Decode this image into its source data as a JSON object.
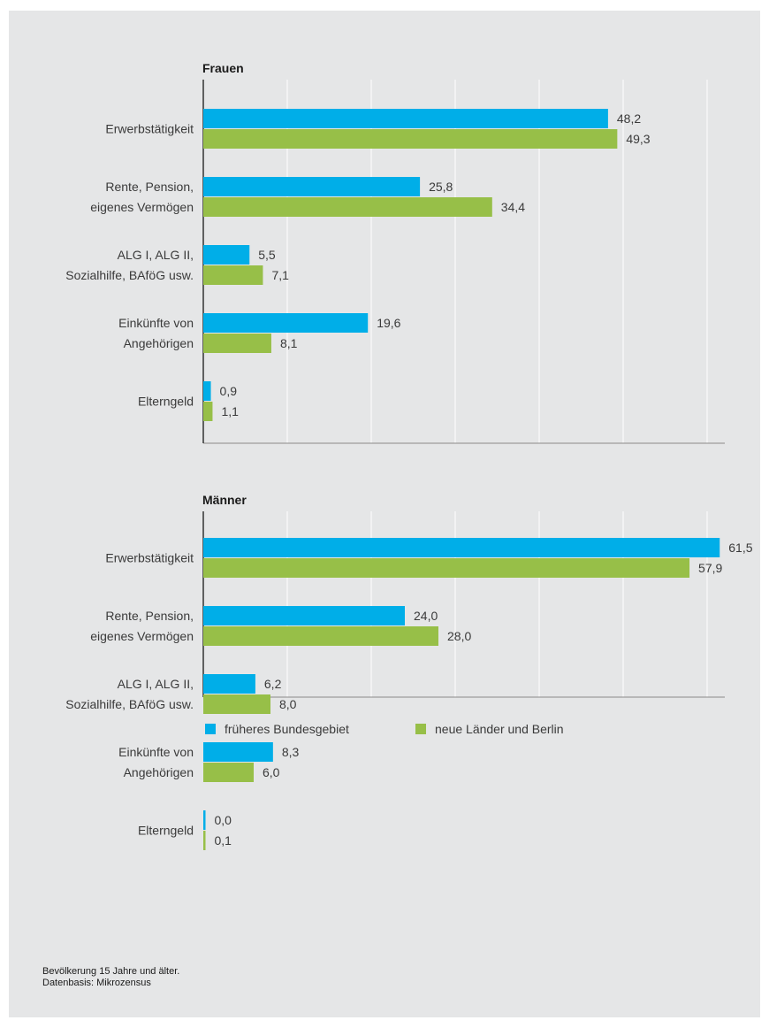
{
  "chart_data": {
    "type": "bar",
    "orientation": "horizontal",
    "xlim": [
      0,
      62
    ],
    "grid": true,
    "legend_placement": "bottom",
    "series_colors": [
      "#00aee8",
      "#97bf48"
    ],
    "legend": [
      "früheres Bundesgebiet",
      "neue Länder und Berlin"
    ],
    "panels": [
      {
        "title": "Frauen",
        "categories": [
          [
            "Erwerbstätigkeit"
          ],
          [
            "Rente, Pension,",
            "eigenes Vermögen"
          ],
          [
            "ALG I, ALG II,",
            "Sozialhilfe, BAföG usw."
          ],
          [
            "Einkünfte von",
            "Angehörigen"
          ],
          [
            "Elterngeld"
          ]
        ],
        "series": [
          {
            "values": [
              48.2,
              25.8,
              5.5,
              19.6,
              0.9
            ],
            "labels": [
              "48,2",
              "25,8",
              "5,5",
              "19,6",
              "0,9"
            ]
          },
          {
            "values": [
              49.3,
              34.4,
              7.1,
              8.1,
              1.1
            ],
            "labels": [
              "49,3",
              "34,4",
              "7,1",
              "8,1",
              "1,1"
            ]
          }
        ]
      },
      {
        "title": "Männer",
        "categories": [
          [
            "Erwerbstätigkeit"
          ],
          [
            "Rente, Pension,",
            "eigenes Vermögen"
          ],
          [
            "ALG I, ALG II,",
            "Sozialhilfe, BAföG usw."
          ],
          [
            "Einkünfte von",
            "Angehörigen"
          ],
          [
            "Elterngeld"
          ]
        ],
        "series": [
          {
            "values": [
              61.5,
              24.0,
              6.2,
              8.3,
              0.0
            ],
            "labels": [
              "61,5",
              "24,0",
              "6,2",
              "8,3",
              "0,0"
            ]
          },
          {
            "values": [
              57.9,
              28.0,
              8.0,
              6.0,
              0.1
            ],
            "labels": [
              "57,9",
              "28,0",
              "8,0",
              "6,0",
              "0,1"
            ]
          }
        ]
      }
    ]
  },
  "footnote": {
    "line1": "Bevölkerung 15 Jahre und älter.",
    "line2": "Datenbasis: Mikrozensus"
  }
}
